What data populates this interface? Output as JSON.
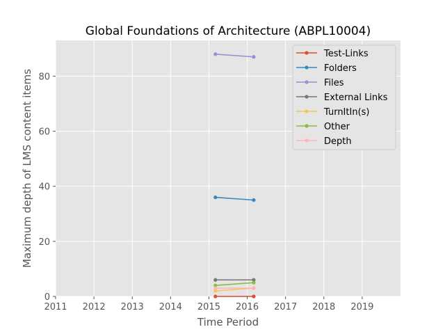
{
  "chart_data": {
    "type": "line",
    "title": "Global Foundations of Architecture (ABPL10004)",
    "xlabel": "Time Period",
    "ylabel": "Maximum depth of LMS content items",
    "xlim": [
      2011,
      2020
    ],
    "ylim": [
      0,
      93
    ],
    "xticks": [
      2011,
      2012,
      2013,
      2014,
      2015,
      2016,
      2017,
      2018,
      2019
    ],
    "yticks": [
      0,
      20,
      40,
      60,
      80
    ],
    "grid": true,
    "legend_position": "top-right",
    "x": [
      2015.17,
      2016.17
    ],
    "series": [
      {
        "name": "Test-Links",
        "color": "#E24A33",
        "values": [
          0,
          0
        ]
      },
      {
        "name": "Folders",
        "color": "#348ABD",
        "values": [
          36,
          35
        ]
      },
      {
        "name": "Files",
        "color": "#988ED5",
        "values": [
          88,
          87
        ]
      },
      {
        "name": "External Links",
        "color": "#777777",
        "values": [
          6,
          6
        ]
      },
      {
        "name": "TurnItIn(s)",
        "color": "#FBC15E",
        "values": [
          2,
          3
        ]
      },
      {
        "name": "Other",
        "color": "#8EBA42",
        "values": [
          4,
          5
        ]
      },
      {
        "name": "Depth",
        "color": "#FFB5B8",
        "values": [
          3,
          3
        ]
      }
    ]
  }
}
